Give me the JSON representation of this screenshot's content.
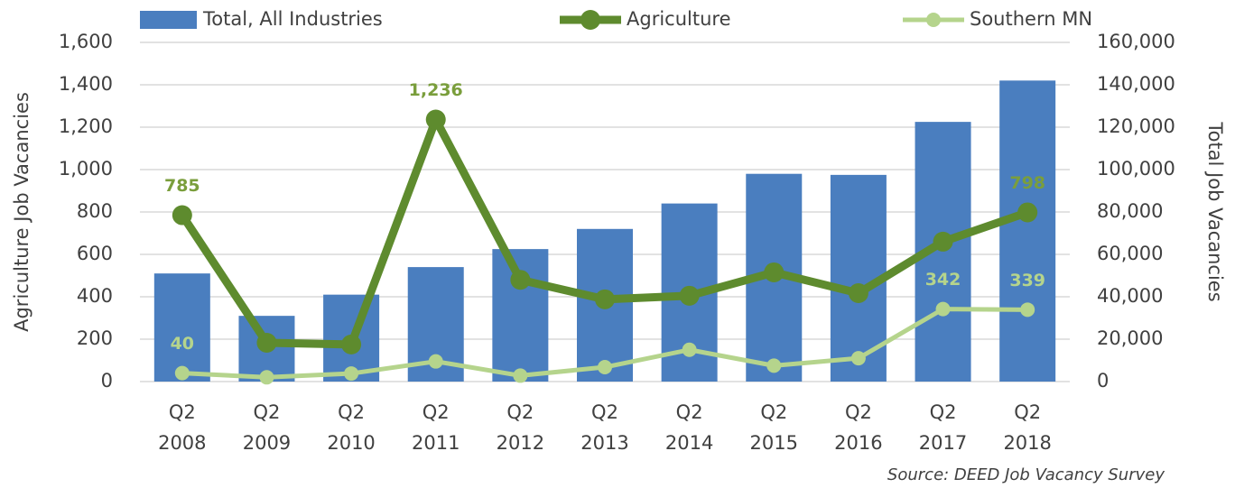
{
  "chart_data": {
    "type": "bar-line",
    "categories": [
      "Q2\n2008",
      "Q2\n2009",
      "Q2\n2010",
      "Q2\n2011",
      "Q2\n2012",
      "Q2\n2013",
      "Q2\n2014",
      "Q2\n2015",
      "Q2\n2016",
      "Q2\n2017",
      "Q2\n2018"
    ],
    "series": [
      {
        "name": "Total, All Industries",
        "type": "bar",
        "axis": "y2",
        "color": "#4a7ebf",
        "values": [
          51000,
          31000,
          41000,
          54000,
          62500,
          72000,
          84000,
          98000,
          97500,
          122500,
          142000
        ]
      },
      {
        "name": "Agriculture",
        "type": "line",
        "axis": "y",
        "color": "#5e8b2e",
        "label_color": "#7a9e3c",
        "values": [
          785,
          183,
          175,
          1236,
          480,
          388,
          405,
          515,
          417,
          660,
          798
        ],
        "value_labels": [
          "785",
          null,
          null,
          "1,236",
          null,
          null,
          null,
          null,
          null,
          null,
          "798"
        ]
      },
      {
        "name": "Southern MN",
        "type": "line",
        "axis": "y",
        "color": "#b5d48c",
        "label_color": "#b5d48c",
        "values": [
          40,
          20,
          38,
          95,
          28,
          68,
          150,
          75,
          110,
          342,
          339
        ],
        "value_labels": [
          "40",
          null,
          null,
          null,
          null,
          null,
          null,
          null,
          null,
          "342",
          "339"
        ]
      }
    ],
    "ylabel": "Agriculture Job Vacancies",
    "y2label": "Total Job Vacancies",
    "ylim": [
      0,
      1600
    ],
    "yticks": [
      0,
      200,
      400,
      600,
      800,
      {
        "value": 1000,
        "label": "1,000"
      },
      {
        "value": 1200,
        "label": "1,200"
      },
      {
        "value": 1400,
        "label": "1,400"
      },
      {
        "value": 1600,
        "label": "1,600"
      }
    ],
    "y2lim": [
      0,
      160000
    ],
    "y2ticks": [
      0,
      {
        "value": 20000,
        "label": "20,000"
      },
      {
        "value": 40000,
        "label": "40,000"
      },
      {
        "value": 60000,
        "label": "60,000"
      },
      {
        "value": 80000,
        "label": "80,000"
      },
      {
        "value": 100000,
        "label": "100,000"
      },
      {
        "value": 120000,
        "label": "120,000"
      },
      {
        "value": 140000,
        "label": "140,000"
      },
      {
        "value": 160000,
        "label": "160,000"
      }
    ],
    "grid": true,
    "legend": "top",
    "source": "Source: DEED Job Vacancy Survey"
  }
}
